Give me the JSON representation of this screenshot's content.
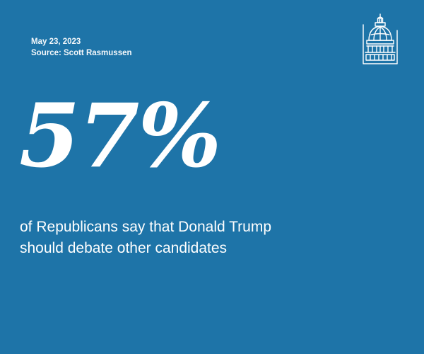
{
  "meta": {
    "date": "May 23, 2023",
    "source": "Source: Scott Rasmussen"
  },
  "logo": {
    "icon": "capitol-dome-icon"
  },
  "stat": {
    "value": "57%"
  },
  "statement": {
    "line1": "of Republicans say that Donald Trump",
    "line2": "should debate other candidates"
  },
  "colors": {
    "background": "#1e74a8",
    "text": "#ffffff"
  }
}
